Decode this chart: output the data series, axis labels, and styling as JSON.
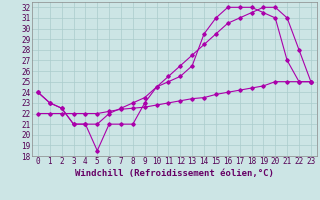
{
  "xlabel": "Windchill (Refroidissement éolien,°C)",
  "background_color": "#cce5e5",
  "grid_color": "#aacccc",
  "line_color": "#aa00aa",
  "xlim": [
    -0.5,
    23.5
  ],
  "ylim": [
    18,
    32.5
  ],
  "xticks": [
    0,
    1,
    2,
    3,
    4,
    5,
    6,
    7,
    8,
    9,
    10,
    11,
    12,
    13,
    14,
    15,
    16,
    17,
    18,
    19,
    20,
    21,
    22,
    23
  ],
  "yticks": [
    18,
    19,
    20,
    21,
    22,
    23,
    24,
    25,
    26,
    27,
    28,
    29,
    30,
    31,
    32
  ],
  "line1_x": [
    0,
    1,
    2,
    3,
    4,
    5,
    6,
    7,
    8,
    9,
    10,
    11,
    12,
    13,
    14,
    15,
    16,
    17,
    18,
    19,
    20,
    21,
    22,
    23
  ],
  "line1_y": [
    24,
    23,
    22.5,
    21,
    21,
    18.5,
    21,
    21,
    21,
    23,
    24.5,
    25,
    25.5,
    26.5,
    29.5,
    31,
    32,
    32,
    32,
    31.5,
    31,
    27,
    25,
    25
  ],
  "line2_x": [
    0,
    1,
    2,
    3,
    4,
    5,
    6,
    7,
    8,
    9,
    10,
    11,
    12,
    13,
    14,
    15,
    16,
    17,
    18,
    19,
    20,
    21,
    22,
    23
  ],
  "line2_y": [
    24,
    23,
    22.5,
    21,
    21,
    21,
    22,
    22.5,
    23,
    23.5,
    24.5,
    25.5,
    26.5,
    27.5,
    28.5,
    29.5,
    30.5,
    31,
    31.5,
    32,
    32,
    31,
    28,
    25
  ],
  "line3_x": [
    0,
    1,
    2,
    3,
    4,
    5,
    6,
    7,
    8,
    9,
    10,
    11,
    12,
    13,
    14,
    15,
    16,
    17,
    18,
    19,
    20,
    21,
    22,
    23
  ],
  "line3_y": [
    22,
    22,
    22,
    22,
    22,
    22,
    22.2,
    22.4,
    22.5,
    22.6,
    22.8,
    23,
    23.2,
    23.4,
    23.5,
    23.8,
    24,
    24.2,
    24.4,
    24.6,
    25,
    25,
    25,
    25
  ],
  "marker": "D",
  "markersize": 1.8,
  "linewidth": 0.8,
  "tick_fontsize": 5.5,
  "label_fontsize": 6.5
}
